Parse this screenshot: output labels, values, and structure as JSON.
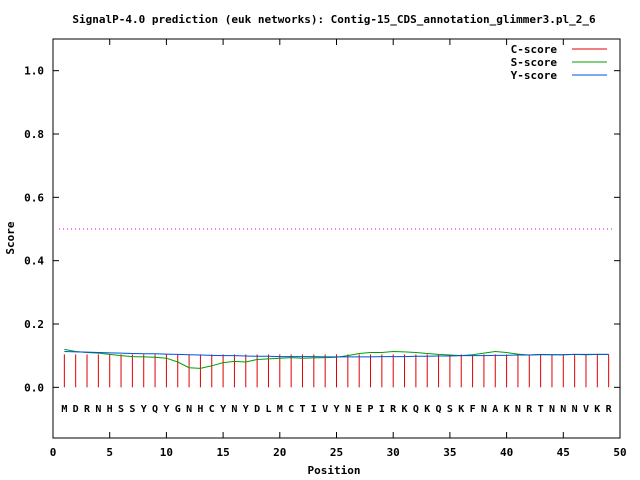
{
  "chart_data": {
    "type": "line",
    "title": "SignalP-4.0 prediction (euk networks): Contig-15_CDS_annotation_glimmer3.pl_2_6",
    "xlabel": "Position",
    "ylabel": "Score",
    "xlim": [
      0,
      50
    ],
    "ylim": [
      -0.16,
      1.1
    ],
    "xticks": [
      "0",
      "5",
      "10",
      "15",
      "20",
      "25",
      "30",
      "35",
      "40",
      "45",
      "50"
    ],
    "yticks": [
      "0.0",
      "0.2",
      "0.4",
      "0.6",
      "0.8",
      "1.0"
    ],
    "threshold": 0.5,
    "sequence": [
      "M",
      "D",
      "R",
      "N",
      "H",
      "S",
      "S",
      "Y",
      "Q",
      "Y",
      "G",
      "N",
      "H",
      "C",
      "Y",
      "N",
      "Y",
      "D",
      "L",
      "M",
      "C",
      "T",
      "I",
      "V",
      "Y",
      "N",
      "E",
      "P",
      "I",
      "R",
      "K",
      "Q",
      "K",
      "Q",
      "S",
      "K",
      "F",
      "N",
      "A",
      "K",
      "N",
      "R",
      "T",
      "N",
      "N",
      "N",
      "V",
      "K",
      "R"
    ],
    "positions": [
      1,
      2,
      3,
      4,
      5,
      6,
      7,
      8,
      9,
      10,
      11,
      12,
      13,
      14,
      15,
      16,
      17,
      18,
      19,
      20,
      21,
      22,
      23,
      24,
      25,
      26,
      27,
      28,
      29,
      30,
      31,
      32,
      33,
      34,
      35,
      36,
      37,
      38,
      39,
      40,
      41,
      42,
      43,
      44,
      45,
      46,
      47,
      48,
      49
    ],
    "series": [
      {
        "name": "C-score",
        "color": "#e00000",
        "values": [
          0.104,
          0.104,
          0.104,
          0.104,
          0.104,
          0.104,
          0.104,
          0.104,
          0.104,
          0.104,
          0.104,
          0.104,
          0.104,
          0.104,
          0.104,
          0.104,
          0.104,
          0.104,
          0.104,
          0.104,
          0.104,
          0.104,
          0.104,
          0.104,
          0.104,
          0.104,
          0.104,
          0.104,
          0.104,
          0.104,
          0.104,
          0.104,
          0.104,
          0.104,
          0.104,
          0.104,
          0.104,
          0.104,
          0.104,
          0.104,
          0.104,
          0.104,
          0.104,
          0.104,
          0.104,
          0.104,
          0.104,
          0.104,
          0.104
        ]
      },
      {
        "name": "S-score",
        "color": "#00a000",
        "values": [
          0.12,
          0.113,
          0.11,
          0.108,
          0.104,
          0.1,
          0.097,
          0.096,
          0.095,
          0.092,
          0.08,
          0.062,
          0.06,
          0.068,
          0.078,
          0.082,
          0.08,
          0.088,
          0.09,
          0.092,
          0.094,
          0.092,
          0.093,
          0.094,
          0.095,
          0.1,
          0.107,
          0.11,
          0.11,
          0.113,
          0.112,
          0.11,
          0.107,
          0.104,
          0.102,
          0.1,
          0.103,
          0.108,
          0.113,
          0.11,
          0.105,
          0.102,
          0.104,
          0.103,
          0.103,
          0.104,
          0.103,
          0.104,
          0.104
        ]
      },
      {
        "name": "Y-score",
        "color": "#0050e0",
        "values": [
          0.113,
          0.112,
          0.111,
          0.11,
          0.109,
          0.108,
          0.107,
          0.106,
          0.106,
          0.105,
          0.104,
          0.103,
          0.102,
          0.101,
          0.1,
          0.1,
          0.099,
          0.098,
          0.098,
          0.097,
          0.097,
          0.097,
          0.097,
          0.096,
          0.096,
          0.096,
          0.096,
          0.096,
          0.097,
          0.097,
          0.097,
          0.098,
          0.098,
          0.099,
          0.099,
          0.1,
          0.1,
          0.1,
          0.101,
          0.101,
          0.102,
          0.102,
          0.103,
          0.103,
          0.103,
          0.104,
          0.104,
          0.104,
          0.104
        ]
      }
    ],
    "legend": "top-right",
    "grid": false
  }
}
